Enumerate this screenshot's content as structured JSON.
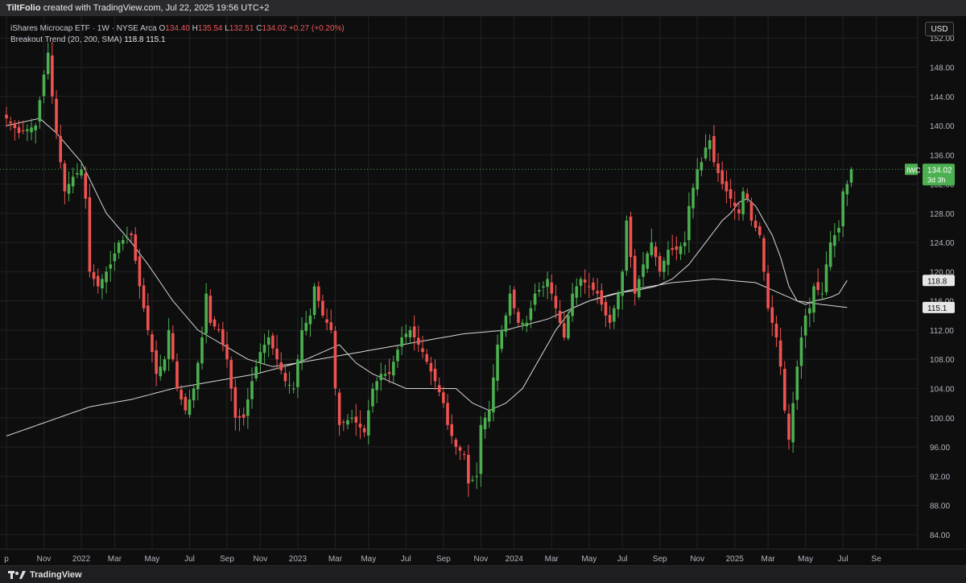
{
  "header": {
    "author": "TiltFolio",
    "credit": " created with TradingView.com, Jul 22, 2025 19:56 UTC+2"
  },
  "legend": {
    "instrument": "iShares Microcap ETF · 1W · NYSE Arca",
    "o_label": "O",
    "o": "134.40",
    "h_label": "H",
    "h": "135.54",
    "l_label": "L",
    "l": "132.51",
    "c_label": "C",
    "c": "134.02",
    "change": "+0.27 (+0.20%)",
    "indicator": "Breakout Trend (20, 200, SMA)",
    "ind_val1": "118.8",
    "ind_val2": "115.1"
  },
  "currency": "USD",
  "footer": {
    "brand": "TradingView"
  },
  "colors": {
    "up": "#4caf50",
    "down": "#ef5350",
    "ma": "#d8d8d8",
    "bg": "#0e0e0f",
    "grid": "#222224",
    "axis_text": "#b2b5be"
  },
  "chart_data": {
    "type": "candlestick",
    "ylim": [
      82,
      155
    ],
    "yticks": [
      84,
      88,
      92,
      96,
      100,
      104,
      108,
      112,
      116,
      120,
      124,
      128,
      132,
      136,
      140,
      144,
      148,
      152
    ],
    "x_labels": [
      {
        "label": "p",
        "week": 0
      },
      {
        "label": "Nov",
        "week": 9
      },
      {
        "label": "2022",
        "week": 18
      },
      {
        "label": "Mar",
        "week": 26
      },
      {
        "label": "May",
        "week": 35
      },
      {
        "label": "Jul",
        "week": 44
      },
      {
        "label": "Sep",
        "week": 53
      },
      {
        "label": "Nov",
        "week": 61
      },
      {
        "label": "2023",
        "week": 70
      },
      {
        "label": "Mar",
        "week": 79
      },
      {
        "label": "May",
        "week": 87
      },
      {
        "label": "Jul",
        "week": 96
      },
      {
        "label": "Sep",
        "week": 105
      },
      {
        "label": "Nov",
        "week": 114
      },
      {
        "label": "2024",
        "week": 122
      },
      {
        "label": "Mar",
        "week": 131
      },
      {
        "label": "May",
        "week": 140
      },
      {
        "label": "Jul",
        "week": 148
      },
      {
        "label": "Sep",
        "week": 157
      },
      {
        "label": "Nov",
        "week": 166
      },
      {
        "label": "2025",
        "week": 175
      },
      {
        "label": "Mar",
        "week": 183
      },
      {
        "label": "May",
        "week": 192
      },
      {
        "label": "Jul",
        "week": 201
      },
      {
        "label": "Se",
        "week": 209
      }
    ],
    "anchors": [
      [
        0,
        141
      ],
      [
        3,
        139
      ],
      [
        7,
        140
      ],
      [
        9,
        147
      ],
      [
        10,
        150
      ],
      [
        11,
        144
      ],
      [
        12,
        139
      ],
      [
        14,
        131
      ],
      [
        16,
        133
      ],
      [
        18,
        134
      ],
      [
        19,
        130
      ],
      [
        20,
        120
      ],
      [
        22,
        118
      ],
      [
        25,
        121
      ],
      [
        27,
        124
      ],
      [
        30,
        125
      ],
      [
        32,
        118
      ],
      [
        34,
        112
      ],
      [
        36,
        106
      ],
      [
        38,
        108
      ],
      [
        39,
        112
      ],
      [
        41,
        104
      ],
      [
        43,
        101
      ],
      [
        45,
        104
      ],
      [
        47,
        111
      ],
      [
        48,
        117
      ],
      [
        49,
        113
      ],
      [
        51,
        112
      ],
      [
        53,
        108
      ],
      [
        55,
        100
      ],
      [
        57,
        100
      ],
      [
        59,
        105
      ],
      [
        61,
        109
      ],
      [
        63,
        111
      ],
      [
        65,
        108
      ],
      [
        67,
        105
      ],
      [
        69,
        104
      ],
      [
        71,
        112
      ],
      [
        73,
        114
      ],
      [
        74,
        118
      ],
      [
        76,
        114
      ],
      [
        78,
        112
      ],
      [
        79,
        104
      ],
      [
        80,
        99
      ],
      [
        83,
        100
      ],
      [
        86,
        98
      ],
      [
        88,
        104
      ],
      [
        90,
        106
      ],
      [
        92,
        106
      ],
      [
        95,
        111
      ],
      [
        97,
        112
      ],
      [
        100,
        109
      ],
      [
        103,
        105
      ],
      [
        105,
        102
      ],
      [
        106,
        99
      ],
      [
        108,
        96
      ],
      [
        110,
        95
      ],
      [
        111,
        91
      ],
      [
        113,
        92
      ],
      [
        114,
        99
      ],
      [
        116,
        101
      ],
      [
        118,
        110
      ],
      [
        120,
        114
      ],
      [
        121,
        117
      ],
      [
        123,
        113
      ],
      [
        125,
        113
      ],
      [
        127,
        117
      ],
      [
        129,
        118
      ],
      [
        130,
        119
      ],
      [
        132,
        115
      ],
      [
        134,
        111
      ],
      [
        136,
        117
      ],
      [
        138,
        119
      ],
      [
        140,
        118
      ],
      [
        142,
        117
      ],
      [
        144,
        114
      ],
      [
        145,
        113
      ],
      [
        147,
        117
      ],
      [
        148,
        120
      ],
      [
        149,
        127
      ],
      [
        151,
        117
      ],
      [
        153,
        121
      ],
      [
        155,
        124
      ],
      [
        157,
        120
      ],
      [
        159,
        123
      ],
      [
        161,
        123
      ],
      [
        163,
        124
      ],
      [
        164,
        129
      ],
      [
        166,
        134
      ],
      [
        167,
        135
      ],
      [
        168,
        137
      ],
      [
        169,
        138
      ],
      [
        170,
        135
      ],
      [
        172,
        132
      ],
      [
        174,
        130
      ],
      [
        176,
        128
      ],
      [
        177,
        131
      ],
      [
        178,
        130
      ],
      [
        179,
        127
      ],
      [
        181,
        125
      ],
      [
        182,
        120
      ],
      [
        183,
        115
      ],
      [
        185,
        111
      ],
      [
        186,
        107
      ],
      [
        187,
        101
      ],
      [
        188,
        97
      ],
      [
        189,
        102
      ],
      [
        190,
        107
      ],
      [
        191,
        111
      ],
      [
        192,
        114
      ],
      [
        193,
        115
      ],
      [
        194,
        118
      ],
      [
        196,
        117
      ],
      [
        197,
        121
      ],
      [
        198,
        124
      ],
      [
        200,
        126
      ],
      [
        201,
        131
      ],
      [
        202,
        132
      ],
      [
        203,
        134.02
      ]
    ],
    "ma_fast_anchors": [
      [
        0,
        140
      ],
      [
        8,
        141
      ],
      [
        12,
        139
      ],
      [
        18,
        135
      ],
      [
        24,
        128
      ],
      [
        30,
        124
      ],
      [
        34,
        121
      ],
      [
        40,
        116
      ],
      [
        46,
        112
      ],
      [
        52,
        110
      ],
      [
        58,
        108
      ],
      [
        64,
        107
      ],
      [
        70,
        107.5
      ],
      [
        76,
        109
      ],
      [
        80,
        110
      ],
      [
        84,
        107.5
      ],
      [
        88,
        106
      ],
      [
        92,
        105
      ],
      [
        96,
        104
      ],
      [
        100,
        104
      ],
      [
        104,
        104
      ],
      [
        108,
        104
      ],
      [
        112,
        102
      ],
      [
        116,
        101
      ],
      [
        120,
        102
      ],
      [
        124,
        104
      ],
      [
        128,
        108
      ],
      [
        132,
        112
      ],
      [
        136,
        115
      ],
      [
        140,
        116
      ],
      [
        146,
        117
      ],
      [
        152,
        117.5
      ],
      [
        156,
        118
      ],
      [
        160,
        119
      ],
      [
        164,
        121
      ],
      [
        168,
        124
      ],
      [
        172,
        127
      ],
      [
        174,
        128
      ],
      [
        176,
        129.5
      ],
      [
        178,
        130
      ],
      [
        180,
        129
      ],
      [
        182,
        127
      ],
      [
        184,
        125
      ],
      [
        186,
        122
      ],
      [
        188,
        118
      ],
      [
        190,
        116
      ],
      [
        192,
        115.5
      ],
      [
        194,
        116
      ],
      [
        196,
        116.2
      ],
      [
        198,
        116.5
      ],
      [
        200,
        117
      ],
      [
        202,
        118.8
      ]
    ],
    "ma_slow_anchors": [
      [
        0,
        97.5
      ],
      [
        10,
        99.5
      ],
      [
        20,
        101.5
      ],
      [
        30,
        102.5
      ],
      [
        40,
        104
      ],
      [
        50,
        105
      ],
      [
        60,
        106
      ],
      [
        70,
        107.5
      ],
      [
        80,
        108.5
      ],
      [
        90,
        109.5
      ],
      [
        100,
        110.5
      ],
      [
        110,
        111.5
      ],
      [
        120,
        112
      ],
      [
        130,
        113.5
      ],
      [
        140,
        116
      ],
      [
        150,
        117.5
      ],
      [
        160,
        118.5
      ],
      [
        170,
        119
      ],
      [
        180,
        118.5
      ],
      [
        186,
        117
      ],
      [
        190,
        116
      ],
      [
        196,
        115.5
      ],
      [
        202,
        115.1
      ]
    ],
    "last_price": {
      "symbol": "IWC",
      "value": "134.02",
      "countdown": "3d 3h"
    },
    "ma_labels": [
      "118.8",
      "115.1"
    ]
  }
}
